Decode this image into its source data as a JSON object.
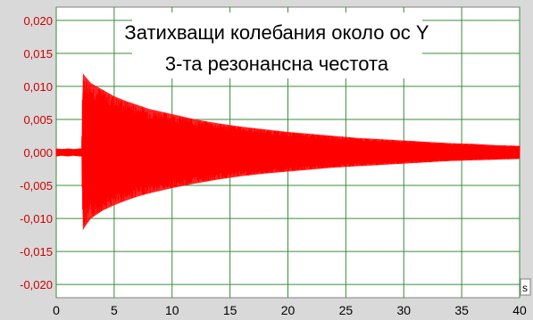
{
  "chart_data": {
    "type": "line",
    "title_lines": [
      "Затихващи колебания около ос Y",
      "3-та резонансна честота"
    ],
    "xlabel": "",
    "ylabel": "",
    "x_unit": "s",
    "xlim": [
      0,
      40
    ],
    "ylim": [
      -0.022,
      0.022
    ],
    "x_ticks": [
      "0",
      "5",
      "10",
      "15",
      "20",
      "25",
      "30",
      "35",
      "40"
    ],
    "y_ticks": [
      "0,020",
      "0,015",
      "0,010",
      "0,005",
      "0,000",
      "-0,005",
      "-0,010",
      "-0,015",
      "-0,020"
    ],
    "grid": true,
    "series": [
      {
        "color": "#ff0000",
        "description": "damped oscillation envelope",
        "x": [
          0.0,
          0.5,
          1.0,
          1.5,
          2.0,
          2.2,
          2.3,
          2.5,
          3.0,
          4.0,
          5.0,
          6.0,
          7.0,
          8.0,
          10.0,
          12.0,
          14.0,
          16.0,
          18.0,
          20.0,
          22.0,
          24.0,
          26.0,
          28.0,
          30.0,
          32.0,
          34.0,
          36.0,
          38.0,
          40.0
        ],
        "upper": [
          0.0006,
          0.0005,
          0.0006,
          0.0005,
          0.0006,
          0.0006,
          0.012,
          0.0115,
          0.0105,
          0.0095,
          0.0085,
          0.0078,
          0.0072,
          0.0066,
          0.0058,
          0.005,
          0.0044,
          0.0039,
          0.0035,
          0.0031,
          0.0028,
          0.0025,
          0.0022,
          0.002,
          0.0018,
          0.0016,
          0.0014,
          0.0013,
          0.0011,
          0.001
        ],
        "lower": [
          -0.0006,
          -0.0005,
          -0.0006,
          -0.0005,
          -0.0006,
          -0.0006,
          -0.0118,
          -0.0112,
          -0.01,
          -0.0088,
          -0.008,
          -0.0073,
          -0.0067,
          -0.0062,
          -0.0054,
          -0.0047,
          -0.0041,
          -0.0036,
          -0.0032,
          -0.0029,
          -0.0026,
          -0.0023,
          -0.0021,
          -0.0019,
          -0.0017,
          -0.0015,
          -0.0013,
          -0.0012,
          -0.0011,
          -0.001
        ]
      }
    ]
  }
}
